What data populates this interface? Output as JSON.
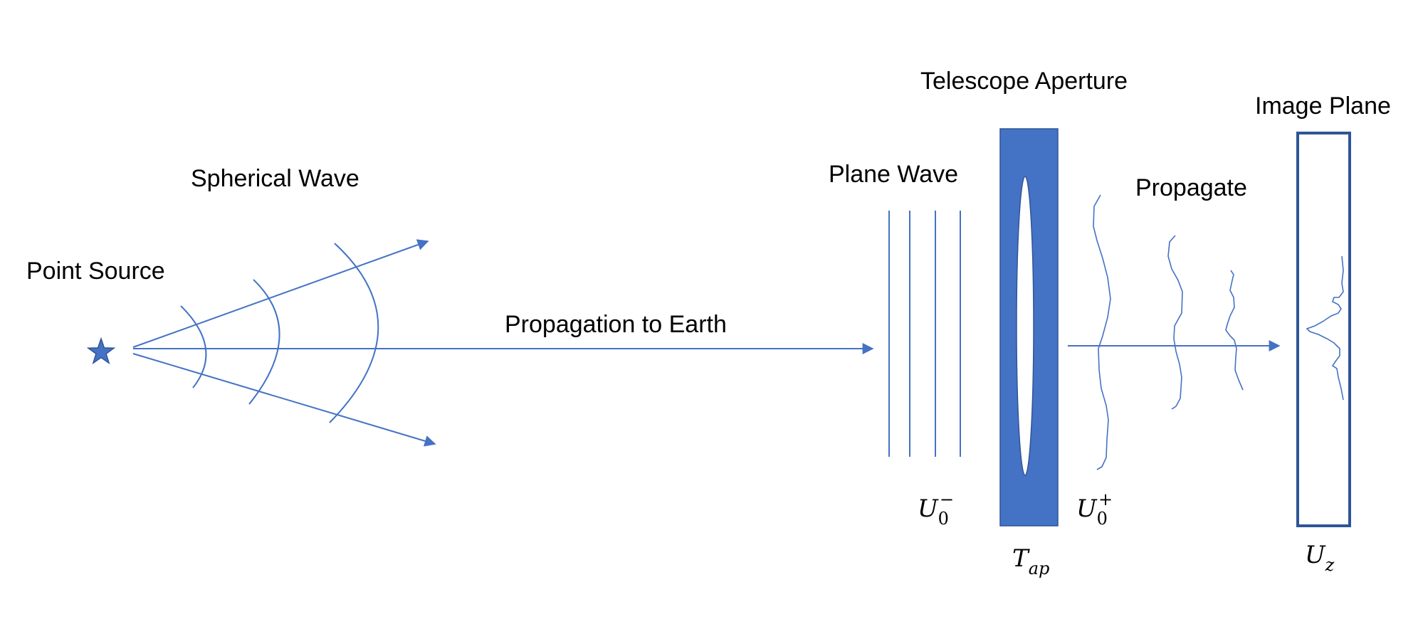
{
  "labels": {
    "point_source": "Point Source",
    "spherical_wave": "Spherical Wave",
    "propagation": "Propagation to Earth",
    "plane_wave": "Plane Wave",
    "telescope_aperture": "Telescope Aperture",
    "propagate": "Propagate",
    "image_plane": "Image Plane"
  },
  "math": {
    "u0_minus": {
      "base": "U",
      "sub": "0",
      "sup": "−"
    },
    "u0_plus": {
      "base": "U",
      "sub": "0",
      "sup": "+"
    },
    "t_ap": {
      "base": "T",
      "sub": "ap"
    },
    "u_z": {
      "base": "U",
      "sub": "z"
    }
  },
  "colors": {
    "accent": "#4472C4",
    "dark_accent": "#2F5597",
    "ink": "#000000"
  },
  "icons": {
    "source": "star-icon"
  }
}
